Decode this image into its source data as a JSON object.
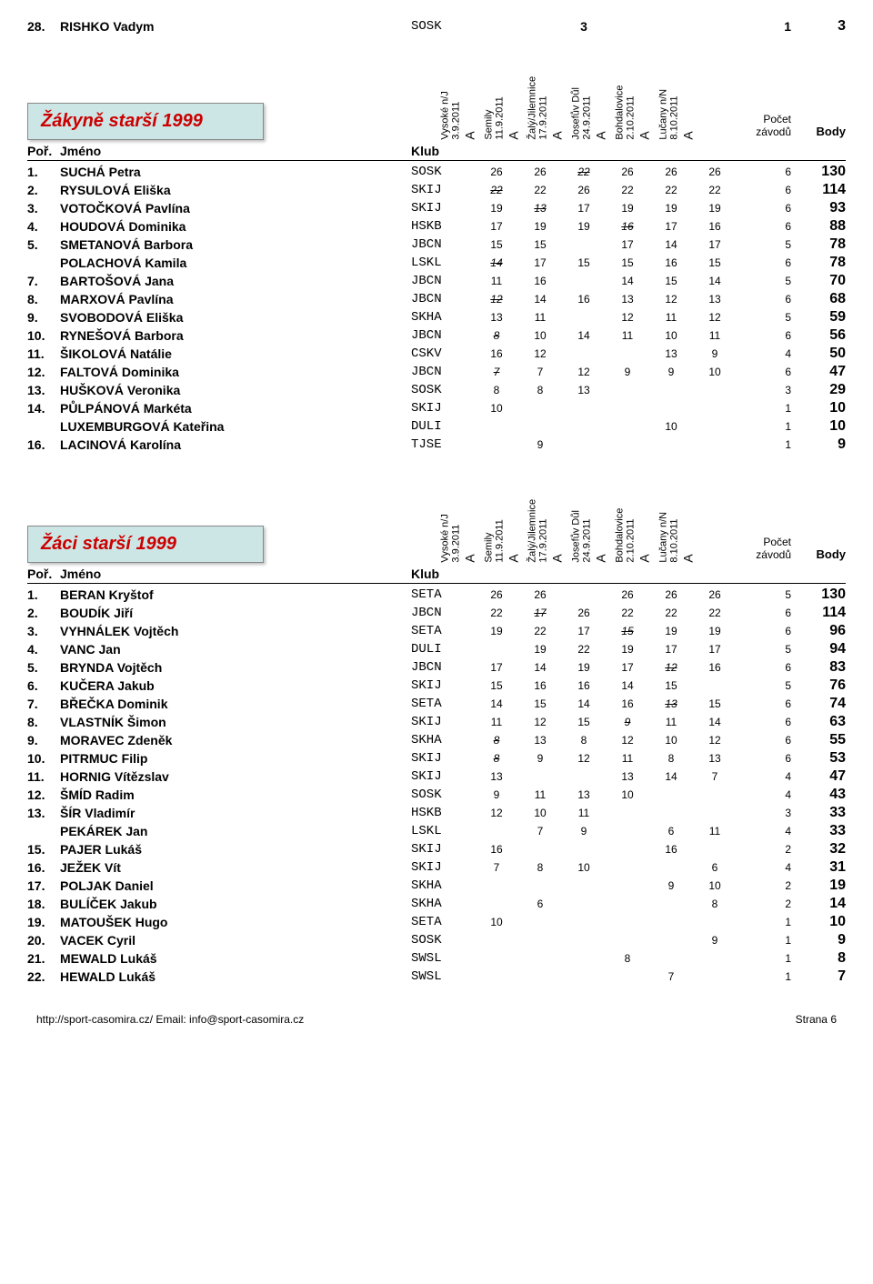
{
  "top_row": {
    "place": "28.",
    "name": "RISHKO Vadym",
    "club": "SOSK",
    "scores": [
      "",
      "",
      "3",
      "",
      "",
      ""
    ],
    "struck": [
      false,
      false,
      false,
      false,
      false,
      false
    ],
    "count": "1",
    "body": "3"
  },
  "labels": {
    "place": "Poř.",
    "name": "Jméno",
    "club": "Klub",
    "count": "Počet",
    "count2": "závodů",
    "body": "Body"
  },
  "columns": [
    {
      "name": "Vysoké n/J",
      "date": "3.9.2011",
      "letter": "A"
    },
    {
      "name": "Semily",
      "date": "11.9.2011",
      "letter": "A"
    },
    {
      "name": "Žalý/Jilemnice",
      "date": "17.9.2011",
      "letter": "A"
    },
    {
      "name": "Josefův Důl",
      "date": "24.9.2011",
      "letter": "A"
    },
    {
      "name": "Bohdalovice",
      "date": "2.10.2011",
      "letter": "A"
    },
    {
      "name": "Lučany n/N",
      "date": "8.10.2011",
      "letter": "A"
    }
  ],
  "section1": {
    "title": "Žákyně starší 1999",
    "rows": [
      {
        "place": "1.",
        "name": "SUCHÁ Petra",
        "club": "SOSK",
        "scores": [
          "26",
          "26",
          "22",
          "26",
          "26",
          "26"
        ],
        "struck": [
          false,
          false,
          true,
          false,
          false,
          false
        ],
        "count": "6",
        "body": "130"
      },
      {
        "place": "2.",
        "name": "RYSULOVÁ Eliška",
        "club": "SKIJ",
        "scores": [
          "22",
          "22",
          "26",
          "22",
          "22",
          "22"
        ],
        "struck": [
          true,
          false,
          false,
          false,
          false,
          false
        ],
        "count": "6",
        "body": "114"
      },
      {
        "place": "3.",
        "name": "VOTOČKOVÁ Pavlína",
        "club": "SKIJ",
        "scores": [
          "19",
          "13",
          "17",
          "19",
          "19",
          "19"
        ],
        "struck": [
          false,
          true,
          false,
          false,
          false,
          false
        ],
        "count": "6",
        "body": "93"
      },
      {
        "place": "4.",
        "name": "HOUDOVÁ Dominika",
        "club": "HSKB",
        "scores": [
          "17",
          "19",
          "19",
          "16",
          "17",
          "16"
        ],
        "struck": [
          false,
          false,
          false,
          true,
          false,
          false
        ],
        "count": "6",
        "body": "88"
      },
      {
        "place": "5.",
        "name": "SMETANOVÁ Barbora",
        "club": "JBCN",
        "scores": [
          "15",
          "15",
          "",
          "17",
          "14",
          "17"
        ],
        "struck": [
          false,
          false,
          false,
          false,
          false,
          false
        ],
        "count": "5",
        "body": "78"
      },
      {
        "place": "",
        "name": "POLACHOVÁ Kamila",
        "club": "LSKL",
        "scores": [
          "14",
          "17",
          "15",
          "15",
          "16",
          "15"
        ],
        "struck": [
          true,
          false,
          false,
          false,
          false,
          false
        ],
        "count": "6",
        "body": "78"
      },
      {
        "place": "7.",
        "name": "BARTOŠOVÁ Jana",
        "club": "JBCN",
        "scores": [
          "11",
          "16",
          "",
          "14",
          "15",
          "14"
        ],
        "struck": [
          false,
          false,
          false,
          false,
          false,
          false
        ],
        "count": "5",
        "body": "70"
      },
      {
        "place": "8.",
        "name": "MARXOVÁ Pavlína",
        "club": "JBCN",
        "scores": [
          "12",
          "14",
          "16",
          "13",
          "12",
          "13"
        ],
        "struck": [
          true,
          false,
          false,
          false,
          false,
          false
        ],
        "count": "6",
        "body": "68"
      },
      {
        "place": "9.",
        "name": "SVOBODOVÁ Eliška",
        "club": "SKHA",
        "scores": [
          "13",
          "11",
          "",
          "12",
          "11",
          "12"
        ],
        "struck": [
          false,
          false,
          false,
          false,
          false,
          false
        ],
        "count": "5",
        "body": "59"
      },
      {
        "place": "10.",
        "name": "RYNEŠOVÁ Barbora",
        "club": "JBCN",
        "scores": [
          "8",
          "10",
          "14",
          "11",
          "10",
          "11"
        ],
        "struck": [
          true,
          false,
          false,
          false,
          false,
          false
        ],
        "count": "6",
        "body": "56"
      },
      {
        "place": "11.",
        "name": "ŠIKOLOVÁ Natálie",
        "club": "CSKV",
        "scores": [
          "16",
          "12",
          "",
          "",
          "13",
          "9"
        ],
        "struck": [
          false,
          false,
          false,
          false,
          false,
          false
        ],
        "count": "4",
        "body": "50"
      },
      {
        "place": "12.",
        "name": "FALTOVÁ Dominika",
        "club": "JBCN",
        "scores": [
          "7",
          "7",
          "12",
          "9",
          "9",
          "10"
        ],
        "struck": [
          true,
          false,
          false,
          false,
          false,
          false
        ],
        "count": "6",
        "body": "47"
      },
      {
        "place": "13.",
        "name": "HUŠKOVÁ Veronika",
        "club": "SOSK",
        "scores": [
          "8",
          "8",
          "13",
          "",
          "",
          ""
        ],
        "struck": [
          false,
          false,
          false,
          false,
          false,
          false
        ],
        "count": "3",
        "body": "29"
      },
      {
        "place": "14.",
        "name": "PŮLPÁNOVÁ Markéta",
        "club": "SKIJ",
        "scores": [
          "10",
          "",
          "",
          "",
          "",
          ""
        ],
        "struck": [
          false,
          false,
          false,
          false,
          false,
          false
        ],
        "count": "1",
        "body": "10"
      },
      {
        "place": "",
        "name": "LUXEMBURGOVÁ Kateřina",
        "club": "DULI",
        "scores": [
          "",
          "",
          "",
          "",
          "10",
          ""
        ],
        "struck": [
          false,
          false,
          false,
          false,
          false,
          false
        ],
        "count": "1",
        "body": "10"
      },
      {
        "place": "16.",
        "name": "LACINOVÁ Karolína",
        "club": "TJSE",
        "scores": [
          "",
          "9",
          "",
          "",
          "",
          ""
        ],
        "struck": [
          false,
          false,
          false,
          false,
          false,
          false
        ],
        "count": "1",
        "body": "9"
      }
    ]
  },
  "section2": {
    "title": "Žáci starší 1999",
    "rows": [
      {
        "place": "1.",
        "name": "BERAN Kryštof",
        "club": "SETA",
        "scores": [
          "26",
          "26",
          "",
          "26",
          "26",
          "26"
        ],
        "struck": [
          false,
          false,
          false,
          false,
          false,
          false
        ],
        "count": "5",
        "body": "130"
      },
      {
        "place": "2.",
        "name": "BOUDÍK Jiří",
        "club": "JBCN",
        "scores": [
          "22",
          "17",
          "26",
          "22",
          "22",
          "22"
        ],
        "struck": [
          false,
          true,
          false,
          false,
          false,
          false
        ],
        "count": "6",
        "body": "114"
      },
      {
        "place": "3.",
        "name": "VYHNÁLEK Vojtěch",
        "club": "SETA",
        "scores": [
          "19",
          "22",
          "17",
          "15",
          "19",
          "19"
        ],
        "struck": [
          false,
          false,
          false,
          true,
          false,
          false
        ],
        "count": "6",
        "body": "96"
      },
      {
        "place": "4.",
        "name": "VANC Jan",
        "club": "DULI",
        "scores": [
          "",
          "19",
          "22",
          "19",
          "17",
          "17"
        ],
        "struck": [
          false,
          false,
          false,
          false,
          false,
          false
        ],
        "count": "5",
        "body": "94"
      },
      {
        "place": "5.",
        "name": "BRYNDA Vojtěch",
        "club": "JBCN",
        "scores": [
          "17",
          "14",
          "19",
          "17",
          "12",
          "16"
        ],
        "struck": [
          false,
          false,
          false,
          false,
          true,
          false
        ],
        "count": "6",
        "body": "83"
      },
      {
        "place": "6.",
        "name": "KUČERA Jakub",
        "club": "SKIJ",
        "scores": [
          "15",
          "16",
          "16",
          "14",
          "15",
          ""
        ],
        "struck": [
          false,
          false,
          false,
          false,
          false,
          false
        ],
        "count": "5",
        "body": "76"
      },
      {
        "place": "7.",
        "name": "BŘEČKA Dominik",
        "club": "SETA",
        "scores": [
          "14",
          "15",
          "14",
          "16",
          "13",
          "15"
        ],
        "struck": [
          false,
          false,
          false,
          false,
          true,
          false
        ],
        "count": "6",
        "body": "74"
      },
      {
        "place": "8.",
        "name": "VLASTNÍK Šimon",
        "club": "SKIJ",
        "scores": [
          "11",
          "12",
          "15",
          "9",
          "11",
          "14"
        ],
        "struck": [
          false,
          false,
          false,
          true,
          false,
          false
        ],
        "count": "6",
        "body": "63"
      },
      {
        "place": "9.",
        "name": "MORAVEC Zdeněk",
        "club": "SKHA",
        "scores": [
          "8",
          "13",
          "8",
          "12",
          "10",
          "12"
        ],
        "struck": [
          true,
          false,
          false,
          false,
          false,
          false
        ],
        "count": "6",
        "body": "55"
      },
      {
        "place": "10.",
        "name": "PITRMUC Filip",
        "club": "SKIJ",
        "scores": [
          "8",
          "9",
          "12",
          "11",
          "8",
          "13"
        ],
        "struck": [
          true,
          false,
          false,
          false,
          false,
          false
        ],
        "count": "6",
        "body": "53"
      },
      {
        "place": "11.",
        "name": "HORNIG Vítězslav",
        "club": "SKIJ",
        "scores": [
          "13",
          "",
          "",
          "13",
          "14",
          "7"
        ],
        "struck": [
          false,
          false,
          false,
          false,
          false,
          false
        ],
        "count": "4",
        "body": "47"
      },
      {
        "place": "12.",
        "name": "ŠMÍD Radim",
        "club": "SOSK",
        "scores": [
          "9",
          "11",
          "13",
          "10",
          "",
          ""
        ],
        "struck": [
          false,
          false,
          false,
          false,
          false,
          false
        ],
        "count": "4",
        "body": "43"
      },
      {
        "place": "13.",
        "name": "ŠÍR Vladimír",
        "club": "HSKB",
        "scores": [
          "12",
          "10",
          "11",
          "",
          "",
          ""
        ],
        "struck": [
          false,
          false,
          false,
          false,
          false,
          false
        ],
        "count": "3",
        "body": "33"
      },
      {
        "place": "",
        "name": "PEKÁREK Jan",
        "club": "LSKL",
        "scores": [
          "",
          "7",
          "9",
          "",
          "6",
          "11"
        ],
        "struck": [
          false,
          false,
          false,
          false,
          false,
          false
        ],
        "count": "4",
        "body": "33"
      },
      {
        "place": "15.",
        "name": "PAJER Lukáš",
        "club": "SKIJ",
        "scores": [
          "16",
          "",
          "",
          "",
          "16",
          ""
        ],
        "struck": [
          false,
          false,
          false,
          false,
          false,
          false
        ],
        "count": "2",
        "body": "32"
      },
      {
        "place": "16.",
        "name": "JEŽEK Vít",
        "club": "SKIJ",
        "scores": [
          "7",
          "8",
          "10",
          "",
          "",
          "6"
        ],
        "struck": [
          false,
          false,
          false,
          false,
          false,
          false
        ],
        "count": "4",
        "body": "31"
      },
      {
        "place": "17.",
        "name": "POLJAK Daniel",
        "club": "SKHA",
        "scores": [
          "",
          "",
          "",
          "",
          "9",
          "10"
        ],
        "struck": [
          false,
          false,
          false,
          false,
          false,
          false
        ],
        "count": "2",
        "body": "19"
      },
      {
        "place": "18.",
        "name": "BULÍČEK Jakub",
        "club": "SKHA",
        "scores": [
          "",
          "6",
          "",
          "",
          "",
          "8"
        ],
        "struck": [
          false,
          false,
          false,
          false,
          false,
          false
        ],
        "count": "2",
        "body": "14"
      },
      {
        "place": "19.",
        "name": "MATOUŠEK Hugo",
        "club": "SETA",
        "scores": [
          "10",
          "",
          "",
          "",
          "",
          ""
        ],
        "struck": [
          false,
          false,
          false,
          false,
          false,
          false
        ],
        "count": "1",
        "body": "10"
      },
      {
        "place": "20.",
        "name": "VACEK Cyril",
        "club": "SOSK",
        "scores": [
          "",
          "",
          "",
          "",
          "",
          "9"
        ],
        "struck": [
          false,
          false,
          false,
          false,
          false,
          false
        ],
        "count": "1",
        "body": "9"
      },
      {
        "place": "21.",
        "name": "MEWALD Lukáš",
        "club": "SWSL",
        "scores": [
          "",
          "",
          "",
          "8",
          "",
          ""
        ],
        "struck": [
          false,
          false,
          false,
          false,
          false,
          false
        ],
        "count": "1",
        "body": "8"
      },
      {
        "place": "22.",
        "name": "HEWALD Lukáš",
        "club": "SWSL",
        "scores": [
          "",
          "",
          "",
          "",
          "7",
          ""
        ],
        "struck": [
          false,
          false,
          false,
          false,
          false,
          false
        ],
        "count": "1",
        "body": "7"
      }
    ]
  },
  "footer": {
    "left": "http://sport-casomira.cz/   Email: info@sport-casomira.cz",
    "right": "Strana 6"
  }
}
